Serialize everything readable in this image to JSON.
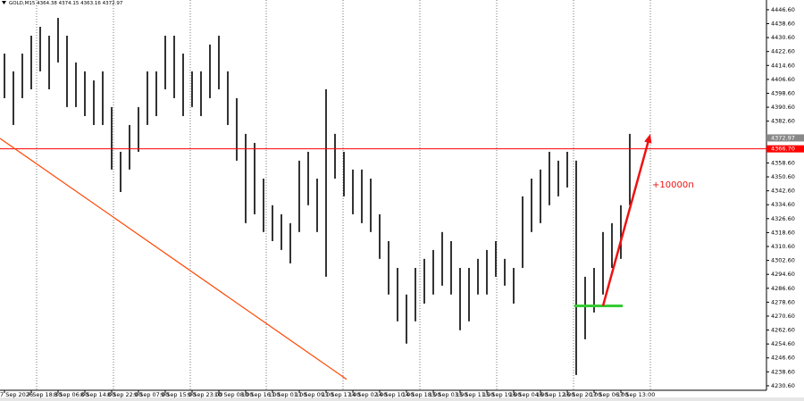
{
  "chart_data": {
    "type": "hlbar",
    "title": "GOLD,M15 4364.38 4374.15 4363.16 4372.97",
    "color": "#000000",
    "categories": [
      "7 Sep 2026",
      null,
      null,
      "7 Sep 18:30",
      null,
      null,
      "8 Sep 06:00",
      null,
      null,
      "8 Sep 14:00",
      null,
      null,
      "8 Sep 22:00",
      null,
      null,
      "9 Sep 07:00",
      null,
      null,
      "9 Sep 15:00",
      null,
      null,
      "9 Sep 23:00",
      null,
      null,
      "10 Sep 08:00",
      null,
      null,
      "10 Sep 16:00",
      null,
      null,
      "11 Sep 01:00",
      null,
      null,
      "11 Sep 09:00",
      null,
      null,
      "11 Sep 17:00",
      null,
      null,
      "14 Sep 02:00",
      null,
      null,
      "14 Sep 10:00",
      null,
      null,
      "14 Sep 18:00",
      null,
      null,
      "15 Sep 03:00",
      null,
      null,
      "15 Sep 11:00",
      null,
      null,
      "15 Sep 19:00",
      null,
      null,
      "16 Sep 04:00",
      null,
      null,
      "16 Sep 12:00",
      null,
      null,
      "16 Sep 20:00",
      null,
      null,
      "17 Sep 06:00",
      null,
      null,
      "17 Sep 13:00",
      null
    ],
    "high": [
      4421.4,
      4411.2,
      4421.4,
      4431.7,
      4436.8,
      4431.7,
      4441.9,
      4431.7,
      4416.3,
      4411.2,
      4406.0,
      4411.2,
      4390.7,
      4365.0,
      4380.4,
      4390.7,
      4411.2,
      4411.2,
      4431.7,
      4431.7,
      4421.4,
      4411.2,
      4411.2,
      4426.6,
      4431.7,
      4411.2,
      4395.8,
      4375.3,
      4370.1,
      4349.6,
      4334.3,
      4329.1,
      4324.0,
      4359.9,
      4365.0,
      4349.6,
      4400.9,
      4375.3,
      4365.0,
      4354.8,
      4354.8,
      4349.6,
      4329.1,
      4313.7,
      4298.3,
      4283.0,
      4298.3,
      4303.5,
      4308.6,
      4318.9,
      4313.7,
      4298.3,
      4298.3,
      4303.5,
      4308.6,
      4313.7,
      4303.5,
      4298.3,
      4339.4,
      4349.6,
      4354.8,
      4365.0,
      4359.9,
      4365.0,
      4359.9,
      4293.2,
      4298.3,
      4318.9,
      4324.0,
      4334.3,
      4375.3
    ],
    "low": [
      4395.8,
      4380.4,
      4395.8,
      4400.9,
      4411.2,
      4400.9,
      4416.3,
      4390.7,
      4390.7,
      4385.5,
      4380.4,
      4380.4,
      4354.8,
      4341.9,
      4354.8,
      4365.0,
      4380.4,
      4385.5,
      4400.9,
      4395.8,
      4385.5,
      4390.7,
      4385.5,
      4395.8,
      4400.9,
      4380.4,
      4359.9,
      4324.0,
      4329.1,
      4318.9,
      4313.7,
      4308.6,
      4300.9,
      4318.9,
      4334.3,
      4318.9,
      4293.2,
      4349.6,
      4339.4,
      4329.1,
      4324.0,
      4318.9,
      4303.5,
      4283.0,
      4267.6,
      4254.8,
      4267.6,
      4277.8,
      4283.0,
      4288.1,
      4283.0,
      4262.5,
      4267.6,
      4283.0,
      4283.0,
      4293.2,
      4288.1,
      4277.8,
      4298.3,
      4318.9,
      4324.0,
      4334.3,
      4339.4,
      4344.5,
      4236.8,
      4257.3,
      4272.7,
      4283.0,
      4298.3,
      4303.5,
      4334.3
    ],
    "ylim": [
      4228,
      4452.2
    ],
    "yticks": [
      {
        "value": 4446.6,
        "label": "4446.60"
      },
      {
        "value": 4438.6,
        "label": "4438.60"
      },
      {
        "value": 4430.6,
        "label": "4430.60"
      },
      {
        "value": 4422.6,
        "label": "4422.60"
      },
      {
        "value": 4414.6,
        "label": "4414.60"
      },
      {
        "value": 4406.6,
        "label": "4406.60"
      },
      {
        "value": 4398.6,
        "label": "4398.60"
      },
      {
        "value": 4390.6,
        "label": "4390.60"
      },
      {
        "value": 4382.6,
        "label": "4382.60"
      },
      {
        "value": 4358.6,
        "label": "4358.60"
      },
      {
        "value": 4350.6,
        "label": "4350.60"
      },
      {
        "value": 4342.6,
        "label": "4342.60"
      },
      {
        "value": 4334.6,
        "label": "4334.60"
      },
      {
        "value": 4326.6,
        "label": "4326.60"
      },
      {
        "value": 4318.6,
        "label": "4318.60"
      },
      {
        "value": 4310.6,
        "label": "4310.60"
      },
      {
        "value": 4302.6,
        "label": "4302.60"
      },
      {
        "value": 4294.6,
        "label": "4294.60"
      },
      {
        "value": 4286.6,
        "label": "4286.60"
      },
      {
        "value": 4278.6,
        "label": "4278.60"
      },
      {
        "value": 4270.6,
        "label": "4270.60"
      },
      {
        "value": 4262.6,
        "label": "4262.60"
      },
      {
        "value": 4254.6,
        "label": "4254.60"
      },
      {
        "value": 4246.6,
        "label": "4246.60"
      },
      {
        "value": 4238.6,
        "label": "4238.60"
      },
      {
        "value": 4230.6,
        "label": "4230.60"
      }
    ],
    "current_price": 4372.97,
    "level": {
      "value": 4366.7,
      "label": "4366.70",
      "color": "#ff0000"
    },
    "trendline": {
      "from": [
        -0.5,
        4372.7
      ],
      "to": [
        38.3,
        4234.3
      ],
      "color": "#ff4500"
    },
    "support": {
      "from": [
        63.8,
        4276.5
      ],
      "to": [
        69.2,
        4276.5
      ],
      "color": "#33cc33"
    },
    "arrow": {
      "from": [
        67,
        4276.5
      ],
      "to": [
        72.3,
        4375.3
      ],
      "color": "#ee1111"
    },
    "annotation": {
      "text": "+10000п",
      "at": [
        72.5,
        4346.1
      ],
      "color": "#ee1111"
    }
  }
}
